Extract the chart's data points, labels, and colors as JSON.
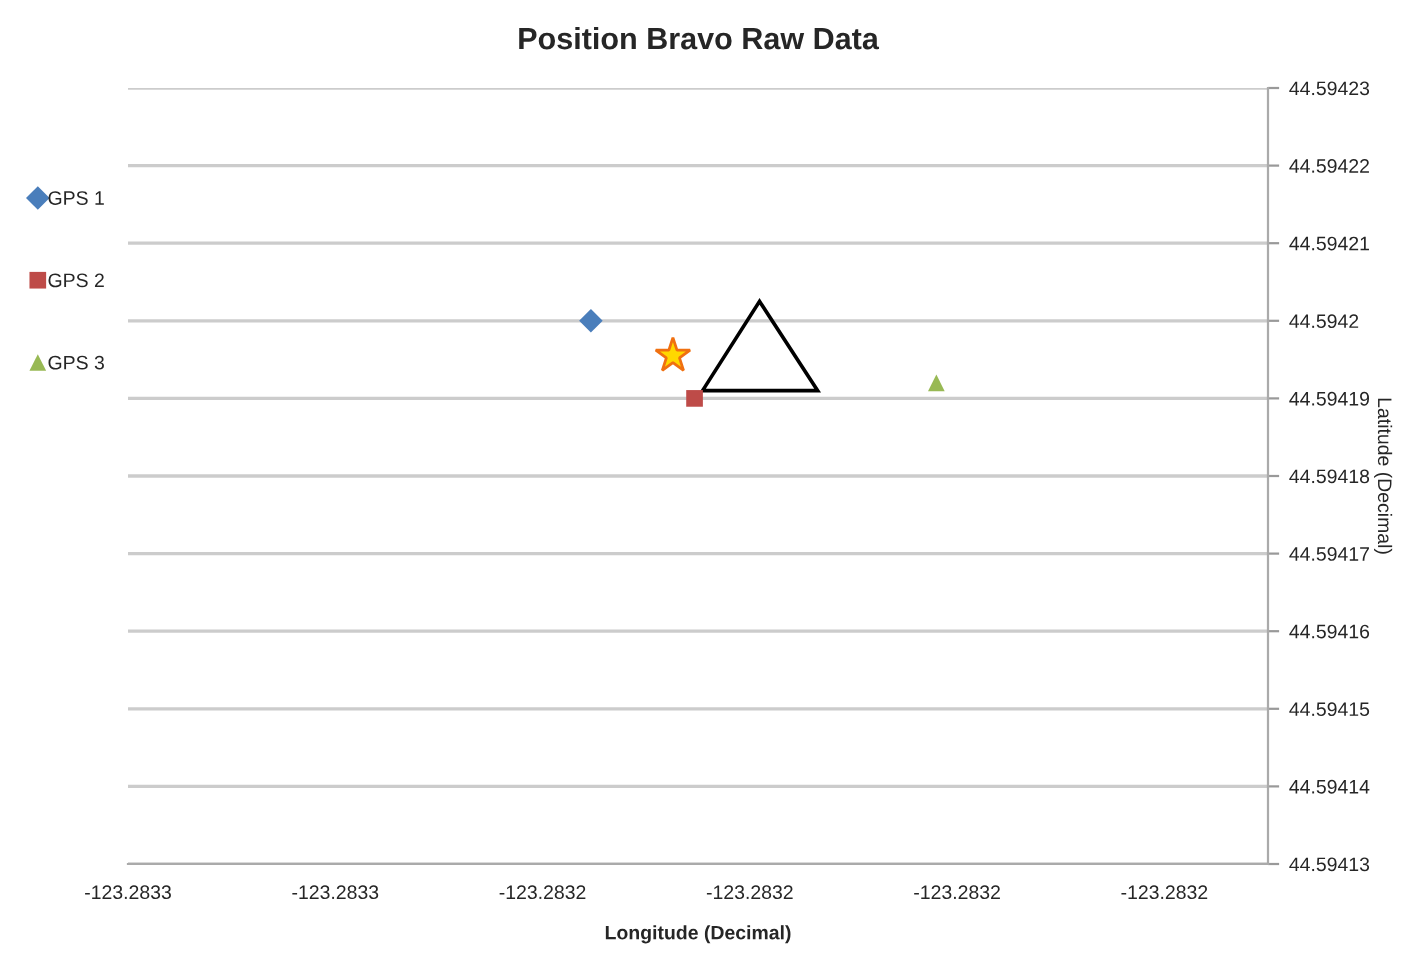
{
  "chart_data": {
    "type": "scatter",
    "title": "Position Bravo Raw Data",
    "xlabel": "Longitude (Decimal)",
    "ylabel": "Latitude (Decimal)",
    "series": [
      {
        "name": "GPS 1",
        "color": "#4a7ebb",
        "marker": "diamond",
        "x": [
          -123.283233
        ],
        "values": [
          44.5942
        ]
      },
      {
        "name": "GPS 2",
        "color": "#be4b48",
        "marker": "square",
        "x": [
          -123.283218
        ],
        "values": [
          44.59419
        ]
      },
      {
        "name": "GPS 3",
        "color": "#98b954",
        "marker": "triangle",
        "x": [
          -123.283183
        ],
        "values": [
          44.594192
        ]
      }
    ],
    "xlim": [
      -123.2833,
      -123.283135
    ],
    "xticks": [
      {
        "value": -123.2833,
        "label": "-123.2833"
      },
      {
        "value": -123.28327,
        "label": "-123.2833"
      },
      {
        "value": -123.28324,
        "label": "-123.2832"
      },
      {
        "value": -123.28321,
        "label": "-123.2832"
      },
      {
        "value": -123.28318,
        "label": "-123.2832"
      },
      {
        "value": -123.28315,
        "label": "-123.2832"
      }
    ],
    "ylim": [
      44.59413,
      44.59423
    ],
    "yticks": [
      44.59413,
      44.59414,
      44.59415,
      44.59416,
      44.59417,
      44.59418,
      44.59419,
      44.5942,
      44.59421,
      44.59422,
      44.59423
    ],
    "grid": "y",
    "legend": "left"
  }
}
